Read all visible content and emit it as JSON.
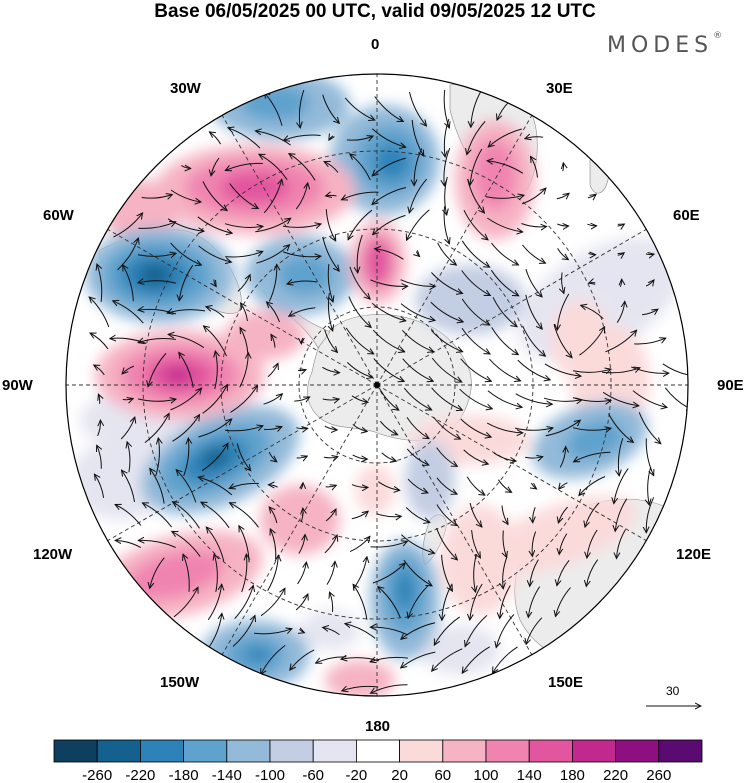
{
  "title": "Base 06/05/2025 00 UTC, valid 09/05/2025 12 UTC",
  "brand": "MODES",
  "brand_mark": "®",
  "longitude_labels": {
    "n0": "0",
    "n30e": "30E",
    "n60e": "60E",
    "n90e": "90E",
    "n120e": "120E",
    "n150e": "150E",
    "n180": "180",
    "n150w": "150W",
    "n120w": "120W",
    "n90w": "90W",
    "n60w": "60W",
    "n30w": "30W"
  },
  "reference_vector": "30",
  "colorbar": {
    "ticks": [
      "-260",
      "-220",
      "-180",
      "-140",
      "-100",
      "-60",
      "-20",
      "20",
      "60",
      "100",
      "140",
      "180",
      "220",
      "260"
    ],
    "colors": [
      "#0f3f5f",
      "#14618f",
      "#2d83b8",
      "#5ea2cd",
      "#93bad9",
      "#c3cde3",
      "#e5e5f1",
      "#ffffff",
      "#fbdada",
      "#f6b3c3",
      "#f084b1",
      "#e2559f",
      "#c2298f",
      "#8e0f80",
      "#5a0a70"
    ]
  },
  "map_colors": {
    "land": "#ececec",
    "coast": "#888888",
    "grid": "#333333",
    "arrow": "#111111"
  }
}
